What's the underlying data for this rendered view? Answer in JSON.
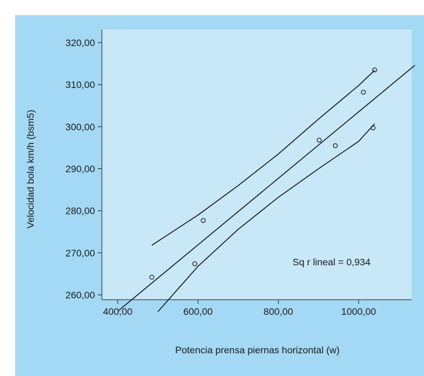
{
  "chart_data": {
    "type": "scatter",
    "xlabel": "Potencia prensa piernas horizontal (w)",
    "ylabel": "Velocidad bola km/h (bsm5)",
    "xlim": [
      400,
      1140
    ],
    "ylim": [
      256,
      325
    ],
    "x_ticks": [
      400,
      600,
      800,
      1000
    ],
    "x_tick_labels": [
      "400,00",
      "600,00",
      "800,00",
      "1000,00"
    ],
    "y_ticks": [
      260,
      270,
      280,
      290,
      300,
      310,
      320
    ],
    "y_tick_labels": [
      "260,00",
      "270,00",
      "280,00",
      "290,00",
      "300,00",
      "310,00",
      "320,00"
    ],
    "grid": false,
    "annotation": "Sq r lineal = 0,934",
    "points": [
      {
        "x": 485,
        "y": 264.2
      },
      {
        "x": 592,
        "y": 267.4
      },
      {
        "x": 613,
        "y": 277.7
      },
      {
        "x": 902,
        "y": 296.8
      },
      {
        "x": 942,
        "y": 295.5
      },
      {
        "x": 1012,
        "y": 308.2
      },
      {
        "x": 1036,
        "y": 299.7
      },
      {
        "x": 1040,
        "y": 313.5
      }
    ],
    "fit_line": [
      {
        "x": 400,
        "y": 256.1
      },
      {
        "x": 1140,
        "y": 314.6
      }
    ],
    "ci_upper": [
      {
        "x": 485,
        "y": 271.8
      },
      {
        "x": 600,
        "y": 279.0
      },
      {
        "x": 700,
        "y": 286.0
      },
      {
        "x": 800,
        "y": 293.5
      },
      {
        "x": 900,
        "y": 301.8
      },
      {
        "x": 1000,
        "y": 309.8
      },
      {
        "x": 1040,
        "y": 313.4
      }
    ],
    "ci_lower": [
      {
        "x": 500,
        "y": 256.0
      },
      {
        "x": 600,
        "y": 266.8
      },
      {
        "x": 700,
        "y": 275.6
      },
      {
        "x": 800,
        "y": 283.2
      },
      {
        "x": 900,
        "y": 290.0
      },
      {
        "x": 1000,
        "y": 296.5
      },
      {
        "x": 1040,
        "y": 300.7
      }
    ],
    "colors": {
      "outer_background": "#a3d9f4",
      "plot_background": "#c8e8f8",
      "axis": "#333333",
      "line": "#111111"
    }
  }
}
